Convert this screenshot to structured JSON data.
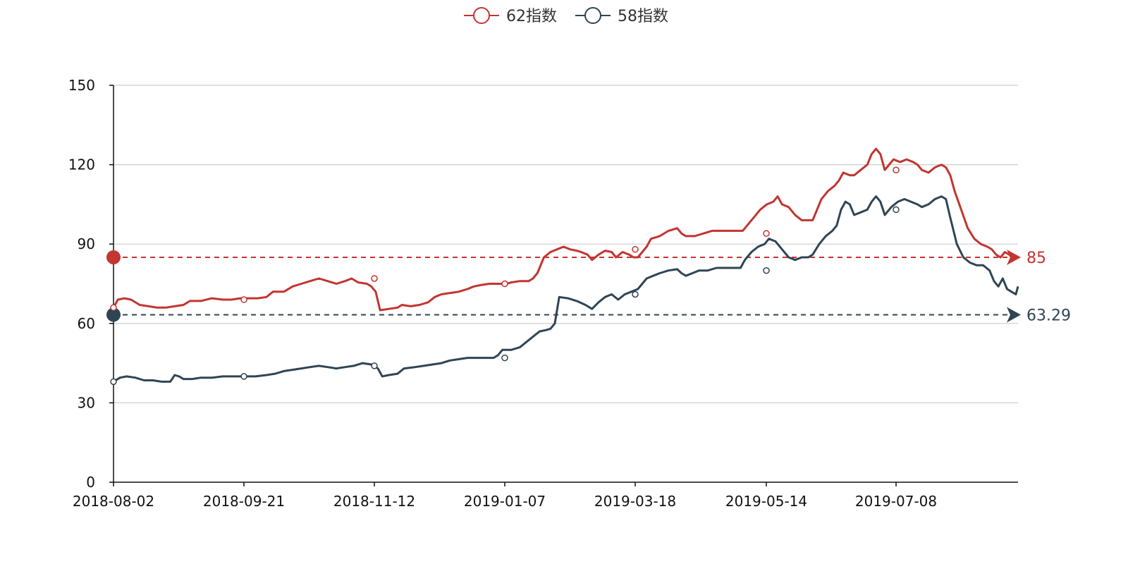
{
  "chart_data": {
    "type": "line",
    "title": "",
    "xlabel": "",
    "ylabel": "",
    "ylim": [
      0,
      150
    ],
    "y_ticks": [
      0,
      30,
      60,
      90,
      120,
      150
    ],
    "x_tick_labels": [
      "2018-08-02",
      "2018-09-21",
      "2018-11-12",
      "2019-01-07",
      "2019-03-18",
      "2019-05-14",
      "2019-07-08"
    ],
    "grid": true,
    "legend_position": "top-center",
    "series": [
      {
        "name": "62指数",
        "color": "#c23531",
        "marker_points": [
          {
            "x": "2018-08-02",
            "y": 66
          },
          {
            "x": "2018-09-21",
            "y": 69
          },
          {
            "x": "2018-11-12",
            "y": 77
          },
          {
            "x": "2019-01-07",
            "y": 75
          },
          {
            "x": "2019-03-18",
            "y": 88
          },
          {
            "x": "2019-05-14",
            "y": 94
          },
          {
            "x": "2019-07-08",
            "y": 118
          }
        ],
        "points": [
          [
            0,
            66
          ],
          [
            2,
            69
          ],
          [
            5,
            69.5
          ],
          [
            8,
            69
          ],
          [
            12,
            67
          ],
          [
            16,
            66.5
          ],
          [
            20,
            66
          ],
          [
            24,
            66
          ],
          [
            28,
            66.5
          ],
          [
            32,
            67
          ],
          [
            35,
            68.5
          ],
          [
            40,
            68.5
          ],
          [
            45,
            69.5
          ],
          [
            50,
            69
          ],
          [
            54,
            69
          ],
          [
            58,
            69.5
          ],
          [
            62,
            69.5
          ],
          [
            66,
            69.5
          ],
          [
            70,
            70
          ],
          [
            73,
            72
          ],
          [
            78,
            72
          ],
          [
            82,
            74
          ],
          [
            86,
            75
          ],
          [
            90,
            76
          ],
          [
            94,
            77
          ],
          [
            98,
            76
          ],
          [
            102,
            75
          ],
          [
            106,
            76
          ],
          [
            109,
            77
          ],
          [
            112,
            75.5
          ],
          [
            116,
            75
          ],
          [
            118,
            74
          ],
          [
            120,
            72
          ],
          [
            122,
            65
          ],
          [
            126,
            65.5
          ],
          [
            130,
            66
          ],
          [
            132,
            67
          ],
          [
            136,
            66.5
          ],
          [
            140,
            67
          ],
          [
            144,
            68
          ],
          [
            147,
            70
          ],
          [
            150,
            71
          ],
          [
            154,
            71.5
          ],
          [
            158,
            72
          ],
          [
            162,
            73
          ],
          [
            165,
            74
          ],
          [
            168,
            74.5
          ],
          [
            172,
            75
          ],
          [
            176,
            75
          ],
          [
            180,
            75
          ],
          [
            182,
            75.5
          ],
          [
            186,
            76
          ],
          [
            190,
            76
          ],
          [
            192,
            77
          ],
          [
            194,
            79
          ],
          [
            197,
            85
          ],
          [
            200,
            87
          ],
          [
            203,
            88
          ],
          [
            206,
            89
          ],
          [
            209,
            88
          ],
          [
            212,
            87.5
          ],
          [
            214,
            87
          ],
          [
            217,
            86
          ],
          [
            219,
            84
          ],
          [
            222,
            86
          ],
          [
            225,
            87.5
          ],
          [
            228,
            87
          ],
          [
            230,
            85
          ],
          [
            233,
            87
          ],
          [
            236,
            86
          ],
          [
            238,
            85
          ],
          [
            240,
            85
          ],
          [
            242,
            87
          ],
          [
            244,
            89
          ],
          [
            246,
            92
          ],
          [
            250,
            93
          ],
          [
            254,
            95
          ],
          [
            258,
            96
          ],
          [
            260,
            94
          ],
          [
            262,
            93
          ],
          [
            266,
            93
          ],
          [
            270,
            94
          ],
          [
            274,
            95
          ],
          [
            278,
            95
          ],
          [
            282,
            95
          ],
          [
            285,
            95
          ],
          [
            288,
            95
          ],
          [
            290,
            97
          ],
          [
            293,
            100
          ],
          [
            296,
            103
          ],
          [
            299,
            105
          ],
          [
            302,
            106
          ],
          [
            304,
            108
          ],
          [
            306,
            105
          ],
          [
            309,
            104
          ],
          [
            312,
            101
          ],
          [
            315,
            99
          ],
          [
            318,
            99
          ],
          [
            320,
            99
          ],
          [
            322,
            103
          ],
          [
            324,
            107
          ],
          [
            327,
            110
          ],
          [
            330,
            112
          ],
          [
            332,
            114
          ],
          [
            334,
            117
          ],
          [
            337,
            116
          ],
          [
            339,
            116
          ],
          [
            342,
            118
          ],
          [
            345,
            120
          ],
          [
            347,
            124
          ],
          [
            349,
            126
          ],
          [
            351,
            124
          ],
          [
            353,
            118
          ],
          [
            355,
            120
          ],
          [
            357,
            122
          ],
          [
            360,
            121
          ],
          [
            363,
            122
          ],
          [
            366,
            121
          ],
          [
            368,
            120
          ],
          [
            370,
            118
          ],
          [
            373,
            117
          ],
          [
            376,
            119
          ],
          [
            379,
            120
          ],
          [
            381,
            119
          ],
          [
            383,
            116
          ],
          [
            385,
            110
          ],
          [
            388,
            103
          ],
          [
            391,
            96
          ],
          [
            394,
            92
          ],
          [
            397,
            90
          ],
          [
            400,
            89
          ],
          [
            402,
            88
          ],
          [
            404,
            86
          ],
          [
            406,
            85
          ],
          [
            408,
            87
          ],
          [
            410,
            86
          ],
          [
            412,
            84
          ],
          [
            414,
            85
          ]
        ]
      },
      {
        "name": "58指数",
        "color": "#2f4554",
        "marker_points": [
          {
            "x": "2018-08-02",
            "y": 38
          },
          {
            "x": "2018-09-21",
            "y": 40
          },
          {
            "x": "2018-11-12",
            "y": 44
          },
          {
            "x": "2019-01-07",
            "y": 47
          },
          {
            "x": "2019-03-18",
            "y": 71
          },
          {
            "x": "2019-05-14",
            "y": 80
          },
          {
            "x": "2019-07-08",
            "y": 103
          }
        ],
        "points": [
          [
            0,
            38
          ],
          [
            3,
            39.5
          ],
          [
            6,
            40
          ],
          [
            10,
            39.5
          ],
          [
            14,
            38.5
          ],
          [
            18,
            38.5
          ],
          [
            22,
            38
          ],
          [
            26,
            38
          ],
          [
            28,
            40.5
          ],
          [
            30,
            40
          ],
          [
            32,
            39
          ],
          [
            36,
            39
          ],
          [
            40,
            39.5
          ],
          [
            45,
            39.5
          ],
          [
            50,
            40
          ],
          [
            55,
            40
          ],
          [
            60,
            40
          ],
          [
            65,
            40
          ],
          [
            70,
            40.5
          ],
          [
            74,
            41
          ],
          [
            78,
            42
          ],
          [
            82,
            42.5
          ],
          [
            86,
            43
          ],
          [
            90,
            43.5
          ],
          [
            94,
            44
          ],
          [
            98,
            43.5
          ],
          [
            102,
            43
          ],
          [
            106,
            43.5
          ],
          [
            110,
            44
          ],
          [
            114,
            45
          ],
          [
            118,
            44.5
          ],
          [
            121,
            43
          ],
          [
            123,
            40
          ],
          [
            126,
            40.5
          ],
          [
            130,
            41
          ],
          [
            133,
            43
          ],
          [
            138,
            43.5
          ],
          [
            142,
            44
          ],
          [
            146,
            44.5
          ],
          [
            150,
            45
          ],
          [
            154,
            46
          ],
          [
            158,
            46.5
          ],
          [
            162,
            47
          ],
          [
            166,
            47
          ],
          [
            170,
            47
          ],
          [
            174,
            47
          ],
          [
            176,
            48
          ],
          [
            178,
            50
          ],
          [
            182,
            50
          ],
          [
            186,
            51
          ],
          [
            189,
            53
          ],
          [
            192,
            55
          ],
          [
            195,
            57
          ],
          [
            198,
            57.5
          ],
          [
            200,
            58
          ],
          [
            202,
            60
          ],
          [
            204,
            70
          ],
          [
            208,
            69.5
          ],
          [
            212,
            68.5
          ],
          [
            216,
            67
          ],
          [
            219,
            65.5
          ],
          [
            222,
            68
          ],
          [
            225,
            70
          ],
          [
            228,
            71
          ],
          [
            231,
            69
          ],
          [
            234,
            71
          ],
          [
            237,
            72
          ],
          [
            240,
            73
          ],
          [
            242,
            75
          ],
          [
            244,
            77
          ],
          [
            247,
            78
          ],
          [
            250,
            79
          ],
          [
            254,
            80
          ],
          [
            258,
            80.5
          ],
          [
            260,
            79
          ],
          [
            262,
            78
          ],
          [
            265,
            79
          ],
          [
            268,
            80
          ],
          [
            272,
            80
          ],
          [
            276,
            81
          ],
          [
            280,
            81
          ],
          [
            284,
            81
          ],
          [
            287,
            81
          ],
          [
            289,
            84
          ],
          [
            292,
            87
          ],
          [
            295,
            89
          ],
          [
            298,
            90
          ],
          [
            300,
            92
          ],
          [
            303,
            91
          ],
          [
            306,
            88
          ],
          [
            309,
            85
          ],
          [
            312,
            84
          ],
          [
            315,
            85
          ],
          [
            318,
            85
          ],
          [
            320,
            86
          ],
          [
            323,
            90
          ],
          [
            326,
            93
          ],
          [
            329,
            95
          ],
          [
            331,
            97
          ],
          [
            333,
            103
          ],
          [
            335,
            106
          ],
          [
            337,
            105
          ],
          [
            339,
            101
          ],
          [
            342,
            102
          ],
          [
            345,
            103
          ],
          [
            347,
            106
          ],
          [
            349,
            108
          ],
          [
            351,
            106
          ],
          [
            353,
            101
          ],
          [
            356,
            104
          ],
          [
            359,
            106
          ],
          [
            362,
            107
          ],
          [
            365,
            106
          ],
          [
            368,
            105
          ],
          [
            370,
            104
          ],
          [
            373,
            105
          ],
          [
            376,
            107
          ],
          [
            379,
            108
          ],
          [
            381,
            107
          ],
          [
            383,
            100
          ],
          [
            386,
            90
          ],
          [
            389,
            85
          ],
          [
            392,
            83
          ],
          [
            395,
            82
          ],
          [
            398,
            82
          ],
          [
            401,
            80
          ],
          [
            403,
            76
          ],
          [
            405,
            74
          ],
          [
            407,
            77
          ],
          [
            409,
            73
          ],
          [
            411,
            72
          ],
          [
            413,
            71
          ],
          [
            414,
            74
          ]
        ]
      }
    ],
    "reference_lines": [
      {
        "series": "62指数",
        "value": 85,
        "label": "85"
      },
      {
        "series": "58指数",
        "value": 63.29,
        "label": "63.29"
      }
    ]
  }
}
